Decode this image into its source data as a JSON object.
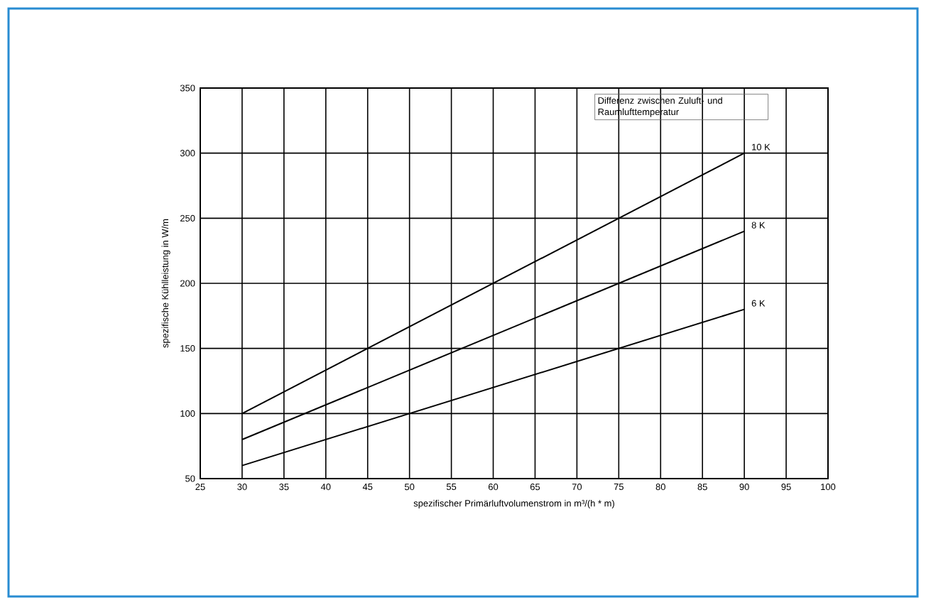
{
  "chart_data": {
    "type": "line",
    "xlabel": "spezifischer Primärluftvolumenstrom in m³/(h * m)",
    "ylabel": "spezifische Kühlleistung in W/m",
    "legend_title": "Differenz zwischen Zuluft- und Raumlufttemperatur",
    "x": [
      30,
      90
    ],
    "series": [
      {
        "name": "10 K",
        "color": "#000000",
        "values": [
          100,
          300
        ]
      },
      {
        "name": "8 K",
        "color": "#000000",
        "values": [
          80,
          240
        ]
      },
      {
        "name": "6 K",
        "color": "#000000",
        "values": [
          60,
          180
        ]
      }
    ],
    "xlim": [
      25,
      100
    ],
    "xticks": [
      25,
      30,
      35,
      40,
      45,
      50,
      55,
      60,
      65,
      70,
      75,
      80,
      85,
      90,
      95,
      100
    ],
    "ylim": [
      50,
      350
    ],
    "yticks": [
      50,
      100,
      150,
      200,
      250,
      300,
      350
    ],
    "grid": true,
    "marker": "none",
    "line_style": "solid"
  }
}
